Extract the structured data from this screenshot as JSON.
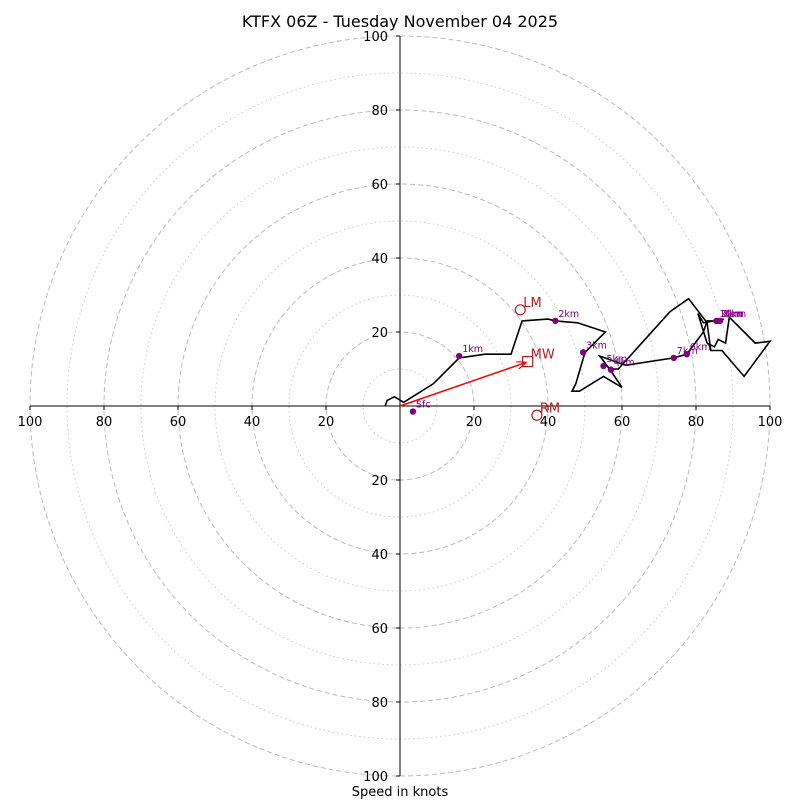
{
  "chart_data": {
    "type": "hodograph",
    "title": "KTFX 06Z - Tuesday November 04 2025",
    "xlabel": "Speed in knots",
    "axis_range": [
      -100,
      100
    ],
    "rings": {
      "major": [
        20,
        40,
        60,
        80,
        100
      ],
      "minor": [
        10,
        30,
        50,
        70,
        90
      ]
    },
    "x_ticks": [
      {
        "v": -100,
        "label": "100"
      },
      {
        "v": -80,
        "label": "80"
      },
      {
        "v": -60,
        "label": "60"
      },
      {
        "v": -40,
        "label": "40"
      },
      {
        "v": -20,
        "label": "20"
      },
      {
        "v": 20,
        "label": "20"
      },
      {
        "v": 40,
        "label": "40"
      },
      {
        "v": 60,
        "label": "60"
      },
      {
        "v": 80,
        "label": "80"
      },
      {
        "v": 100,
        "label": "100"
      }
    ],
    "y_ticks": [
      {
        "v": 100,
        "label": "100"
      },
      {
        "v": 80,
        "label": "80"
      },
      {
        "v": 60,
        "label": "60"
      },
      {
        "v": 40,
        "label": "40"
      },
      {
        "v": 20,
        "label": "20"
      },
      {
        "v": -20,
        "label": "20"
      },
      {
        "v": -40,
        "label": "40"
      },
      {
        "v": -60,
        "label": "60"
      },
      {
        "v": -80,
        "label": "80"
      },
      {
        "v": -100,
        "label": "100"
      }
    ],
    "trace": [
      [
        -4,
        0
      ],
      [
        -3.5,
        1.5
      ],
      [
        -1.5,
        2.5
      ],
      [
        1,
        1
      ],
      [
        9,
        6
      ],
      [
        16,
        13
      ],
      [
        23,
        14
      ],
      [
        30,
        14
      ],
      [
        33,
        23
      ],
      [
        40,
        23.5
      ],
      [
        42,
        23
      ],
      [
        48,
        22.5
      ],
      [
        55.5,
        20
      ],
      [
        50,
        14.5
      ],
      [
        47.5,
        6
      ],
      [
        46.5,
        4
      ],
      [
        48.5,
        4
      ],
      [
        55,
        8
      ],
      [
        60,
        5
      ],
      [
        57,
        9.5
      ],
      [
        54,
        13.5
      ],
      [
        61,
        11
      ],
      [
        74,
        13
      ],
      [
        77.5,
        14
      ],
      [
        82,
        20
      ],
      [
        83,
        23
      ],
      [
        86,
        23
      ],
      [
        87.5,
        23.5
      ],
      [
        82,
        22.5
      ],
      [
        80.5,
        25
      ],
      [
        83,
        17
      ],
      [
        85,
        16
      ],
      [
        86,
        18
      ],
      [
        88,
        17
      ],
      [
        89,
        24
      ],
      [
        96,
        17
      ],
      [
        100,
        17.5
      ],
      [
        93,
        8
      ],
      [
        87,
        15
      ],
      [
        84,
        15
      ],
      [
        83,
        22.5
      ],
      [
        78,
        29
      ],
      [
        73,
        25.5
      ],
      [
        59,
        10
      ],
      [
        57,
        10
      ]
    ],
    "height_markers": [
      {
        "label": "Sfc",
        "u": 3.5,
        "v": -1.5
      },
      {
        "label": "1km",
        "u": 16,
        "v": 13.5
      },
      {
        "label": "2km",
        "u": 42,
        "v": 23
      },
      {
        "label": "3km",
        "u": 49.5,
        "v": 14.5
      },
      {
        "label": "4km",
        "u": 57,
        "v": 9.8
      },
      {
        "label": "5km",
        "u": 55,
        "v": 10.8
      },
      {
        "label": "6km",
        "u": 77.5,
        "v": 14
      },
      {
        "label": "7km",
        "u": 74,
        "v": 13
      },
      {
        "label": "8km",
        "u": 86.5,
        "v": 23
      },
      {
        "label": "9km",
        "u": 86,
        "v": 23
      },
      {
        "label": "10km",
        "u": 85.5,
        "v": 23
      }
    ],
    "storm_motion": {
      "LM": {
        "u": 32.5,
        "v": 26
      },
      "MW": {
        "u": 34.5,
        "v": 12
      },
      "RM": {
        "u": 37,
        "v": -2.5
      }
    },
    "colors": {
      "trace": "#000000",
      "markers": "#800080",
      "storm_motion": "#b22222",
      "arrow": "#ff0000",
      "grid": "#bbbbbb"
    }
  }
}
